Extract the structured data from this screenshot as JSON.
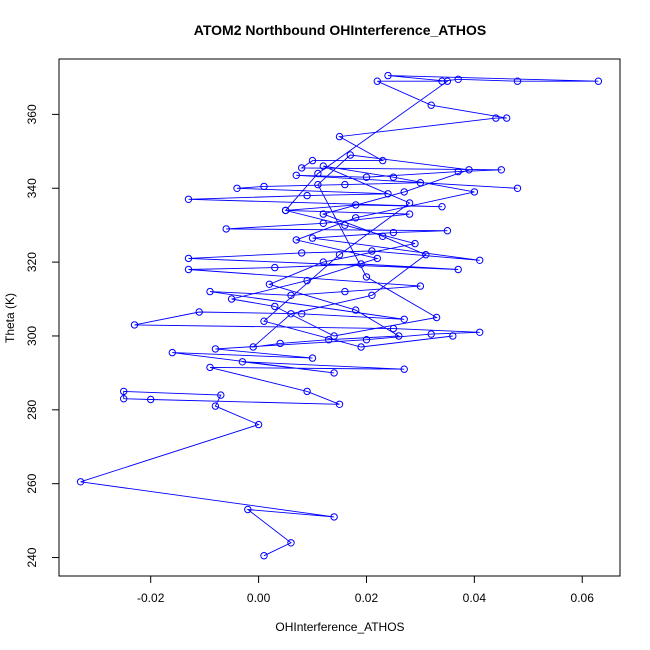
{
  "chart_data": {
    "type": "scatter",
    "title": "ATOM2 Northbound OHInterference_ATHOS",
    "xlabel": "OHInterference_ATHOS",
    "ylabel": "Theta (K)",
    "xlim": [
      -0.037,
      0.067
    ],
    "ylim": [
      235.0,
      375.0
    ],
    "xticks": [
      "-0.02",
      "0.00",
      "0.02",
      "0.04",
      "0.06"
    ],
    "yticks": [
      "240",
      "260",
      "280",
      "300",
      "320",
      "340",
      "360"
    ],
    "grid": false,
    "legend": "none",
    "series": [
      {
        "color": "#0000ff",
        "marker": "open-circle",
        "connected": true,
        "points": [
          [
            0.001,
            240.5
          ],
          [
            0.006,
            244.0
          ],
          [
            -0.002,
            253.0
          ],
          [
            0.014,
            251.0
          ],
          [
            -0.033,
            260.5
          ],
          [
            0.0,
            276.0
          ],
          [
            -0.008,
            281.0
          ],
          [
            -0.007,
            284.0
          ],
          [
            -0.025,
            285.0
          ],
          [
            -0.025,
            283.0
          ],
          [
            -0.02,
            282.8
          ],
          [
            0.015,
            281.5
          ],
          [
            0.009,
            285.0
          ],
          [
            -0.009,
            291.5
          ],
          [
            0.027,
            291.0
          ],
          [
            -0.003,
            293.0
          ],
          [
            0.014,
            290.0
          ],
          [
            -0.016,
            295.5
          ],
          [
            0.01,
            294.0
          ],
          [
            -0.008,
            296.5
          ],
          [
            0.02,
            299.0
          ],
          [
            0.032,
            300.5
          ],
          [
            0.041,
            301.0
          ],
          [
            0.025,
            302.0
          ],
          [
            -0.023,
            303.0
          ],
          [
            -0.011,
            306.5
          ],
          [
            0.008,
            306.0
          ],
          [
            0.027,
            304.5
          ],
          [
            -0.009,
            312.0
          ],
          [
            0.006,
            311.0
          ],
          [
            0.016,
            312.0
          ],
          [
            0.03,
            313.5
          ],
          [
            -0.013,
            318.0
          ],
          [
            0.003,
            318.5
          ],
          [
            0.019,
            319.5
          ],
          [
            0.037,
            318.0
          ],
          [
            -0.013,
            321.0
          ],
          [
            0.008,
            322.5
          ],
          [
            0.021,
            323.0
          ],
          [
            0.041,
            320.5
          ],
          [
            0.01,
            326.5
          ],
          [
            0.025,
            328.0
          ],
          [
            0.035,
            328.5
          ],
          [
            -0.006,
            329.0
          ],
          [
            0.012,
            330.5
          ],
          [
            0.028,
            333.0
          ],
          [
            0.005,
            334.0
          ],
          [
            0.018,
            335.5
          ],
          [
            0.034,
            335.0
          ],
          [
            -0.013,
            337.0
          ],
          [
            0.009,
            338.0
          ],
          [
            0.024,
            338.5
          ],
          [
            -0.004,
            340.0
          ],
          [
            0.001,
            340.5
          ],
          [
            0.016,
            341.0
          ],
          [
            0.03,
            341.5
          ],
          [
            0.048,
            340.0
          ],
          [
            0.007,
            343.5
          ],
          [
            0.02,
            343.0
          ],
          [
            0.037,
            344.5
          ],
          [
            0.045,
            345.0
          ],
          [
            0.008,
            345.5
          ],
          [
            0.01,
            347.5
          ],
          [
            0.023,
            347.5
          ],
          [
            0.015,
            354.0
          ],
          [
            0.044,
            359.0
          ],
          [
            0.046,
            359.0
          ],
          [
            0.032,
            362.5
          ],
          [
            0.022,
            369.0
          ],
          [
            0.034,
            369.0
          ],
          [
            0.037,
            369.5
          ],
          [
            0.048,
            369.0
          ],
          [
            0.063,
            369.0
          ],
          [
            0.024,
            370.5
          ],
          [
            0.035,
            369.0
          ],
          [
            0.011,
            344.0
          ],
          [
            0.005,
            334.0
          ],
          [
            0.016,
            330.0
          ],
          [
            0.029,
            325.0
          ],
          [
            0.012,
            320.0
          ],
          [
            0.002,
            314.0
          ],
          [
            0.018,
            307.0
          ],
          [
            0.026,
            300.0
          ],
          [
            0.013,
            299.0
          ],
          [
            0.004,
            298.0
          ],
          [
            -0.001,
            297.0
          ],
          [
            0.006,
            306.0
          ],
          [
            0.021,
            311.0
          ],
          [
            0.031,
            322.0
          ],
          [
            0.023,
            327.0
          ],
          [
            0.012,
            333.0
          ],
          [
            0.027,
            339.0
          ],
          [
            0.039,
            345.0
          ],
          [
            0.017,
            349.0
          ],
          [
            0.011,
            341.0
          ],
          [
            0.02,
            316.0
          ],
          [
            0.033,
            305.0
          ],
          [
            0.014,
            300.0
          ],
          [
            0.003,
            308.0
          ],
          [
            -0.005,
            310.0
          ],
          [
            0.009,
            315.0
          ],
          [
            0.022,
            321.0
          ],
          [
            0.007,
            326.0
          ],
          [
            0.018,
            332.0
          ],
          [
            0.04,
            339.0
          ],
          [
            0.025,
            343.0
          ],
          [
            0.012,
            346.0
          ],
          [
            0.028,
            336.0
          ],
          [
            0.015,
            322.0
          ],
          [
            0.001,
            304.0
          ],
          [
            0.019,
            297.0
          ],
          [
            0.036,
            300.0
          ]
        ]
      }
    ]
  }
}
